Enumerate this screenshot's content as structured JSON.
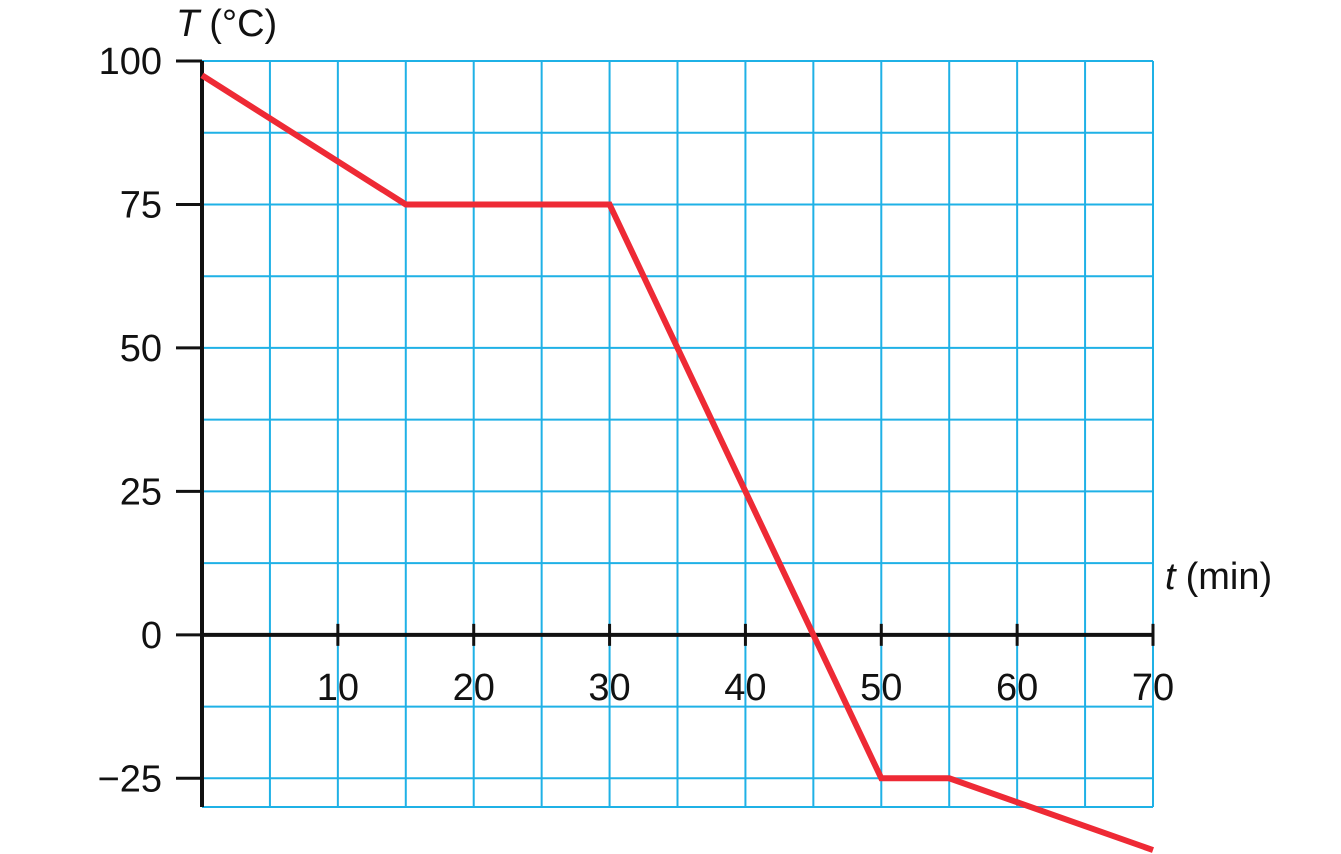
{
  "chart_data": {
    "type": "line",
    "title": "",
    "xlabel": {
      "var": "t",
      "unit": "(min)"
    },
    "ylabel": {
      "var": "T",
      "unit": "(°C)"
    },
    "xlim": [
      0,
      70
    ],
    "ylim": [
      -30,
      100
    ],
    "x_ticks": [
      10,
      20,
      30,
      40,
      50,
      60,
      70
    ],
    "y_ticks": [
      100,
      75,
      50,
      25,
      0,
      -25
    ],
    "y_tick_labels": [
      "100",
      "75",
      "50",
      "25",
      "0",
      "−25"
    ],
    "grid": true,
    "grid_step_x": 5,
    "grid_step_y": 12.5,
    "series": [
      {
        "x": [
          0,
          15,
          30,
          45,
          50,
          55,
          70
        ],
        "y": [
          97.5,
          75,
          75,
          0,
          -25,
          -25,
          -37.5
        ]
      }
    ],
    "colors": {
      "grid": "#1fb1e6",
      "line": "#ee2a35",
      "axis": "#111111"
    }
  }
}
